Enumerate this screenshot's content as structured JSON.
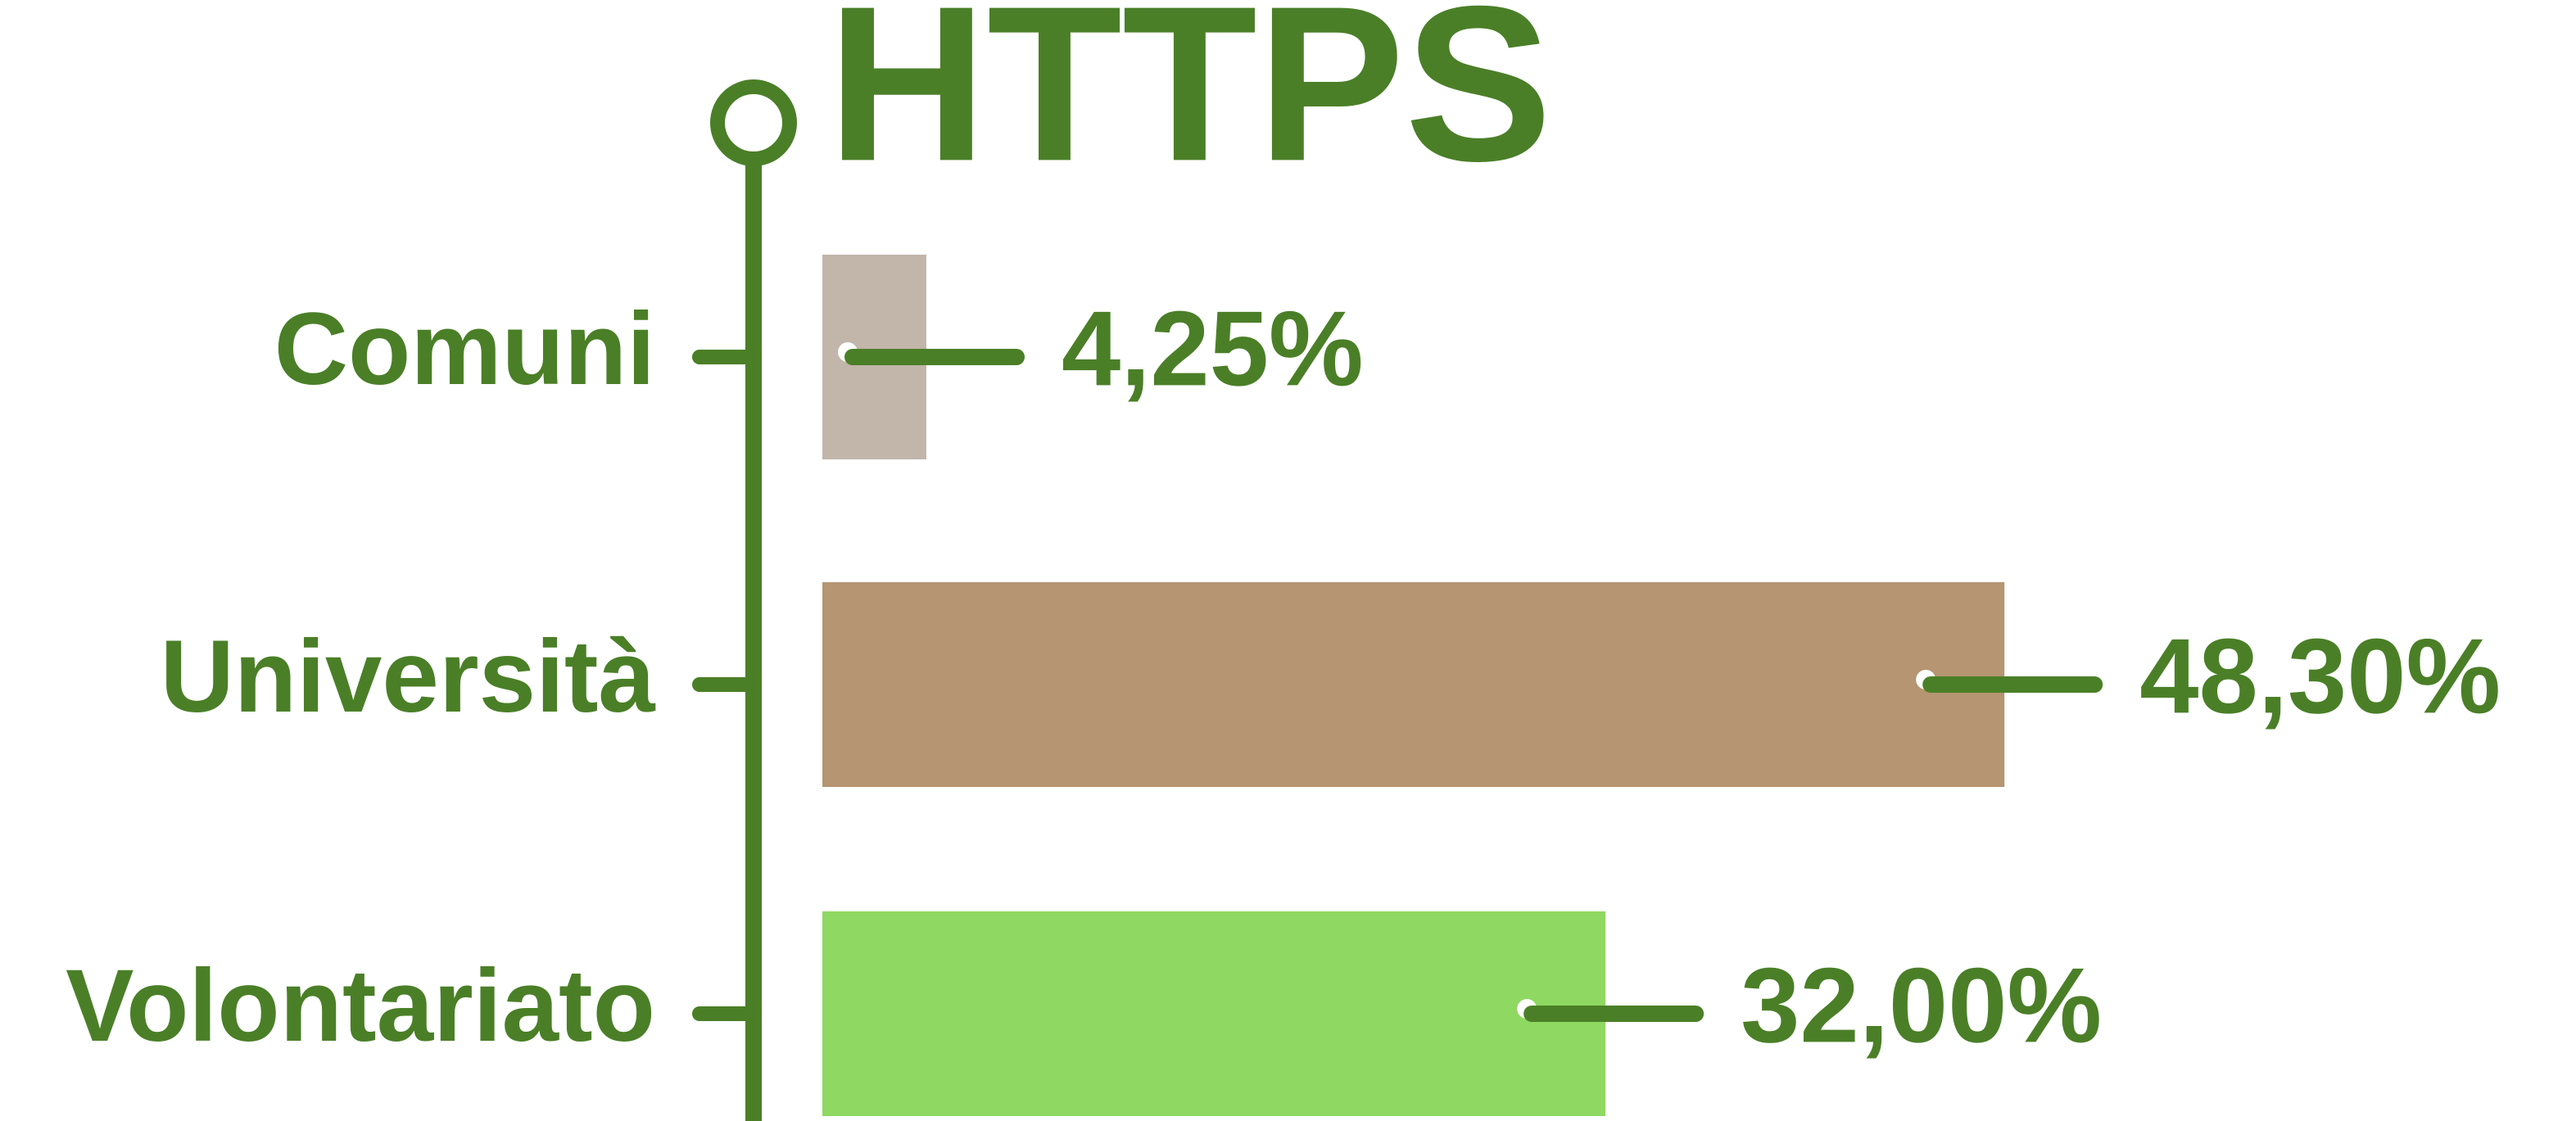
{
  "chart_data": {
    "type": "hbar",
    "title": "HTTPS",
    "categories": [
      "Comuni",
      "Università",
      "Volontariato"
    ],
    "values": [
      4.25,
      48.3,
      32.0
    ],
    "value_labels": [
      "4,25%",
      "48,30%",
      "32,00%"
    ],
    "colors": [
      "#c2b5aa",
      "#b59572",
      "#8fd862"
    ],
    "accent_color": "#4a7f27",
    "xlim": [
      0,
      50
    ]
  }
}
